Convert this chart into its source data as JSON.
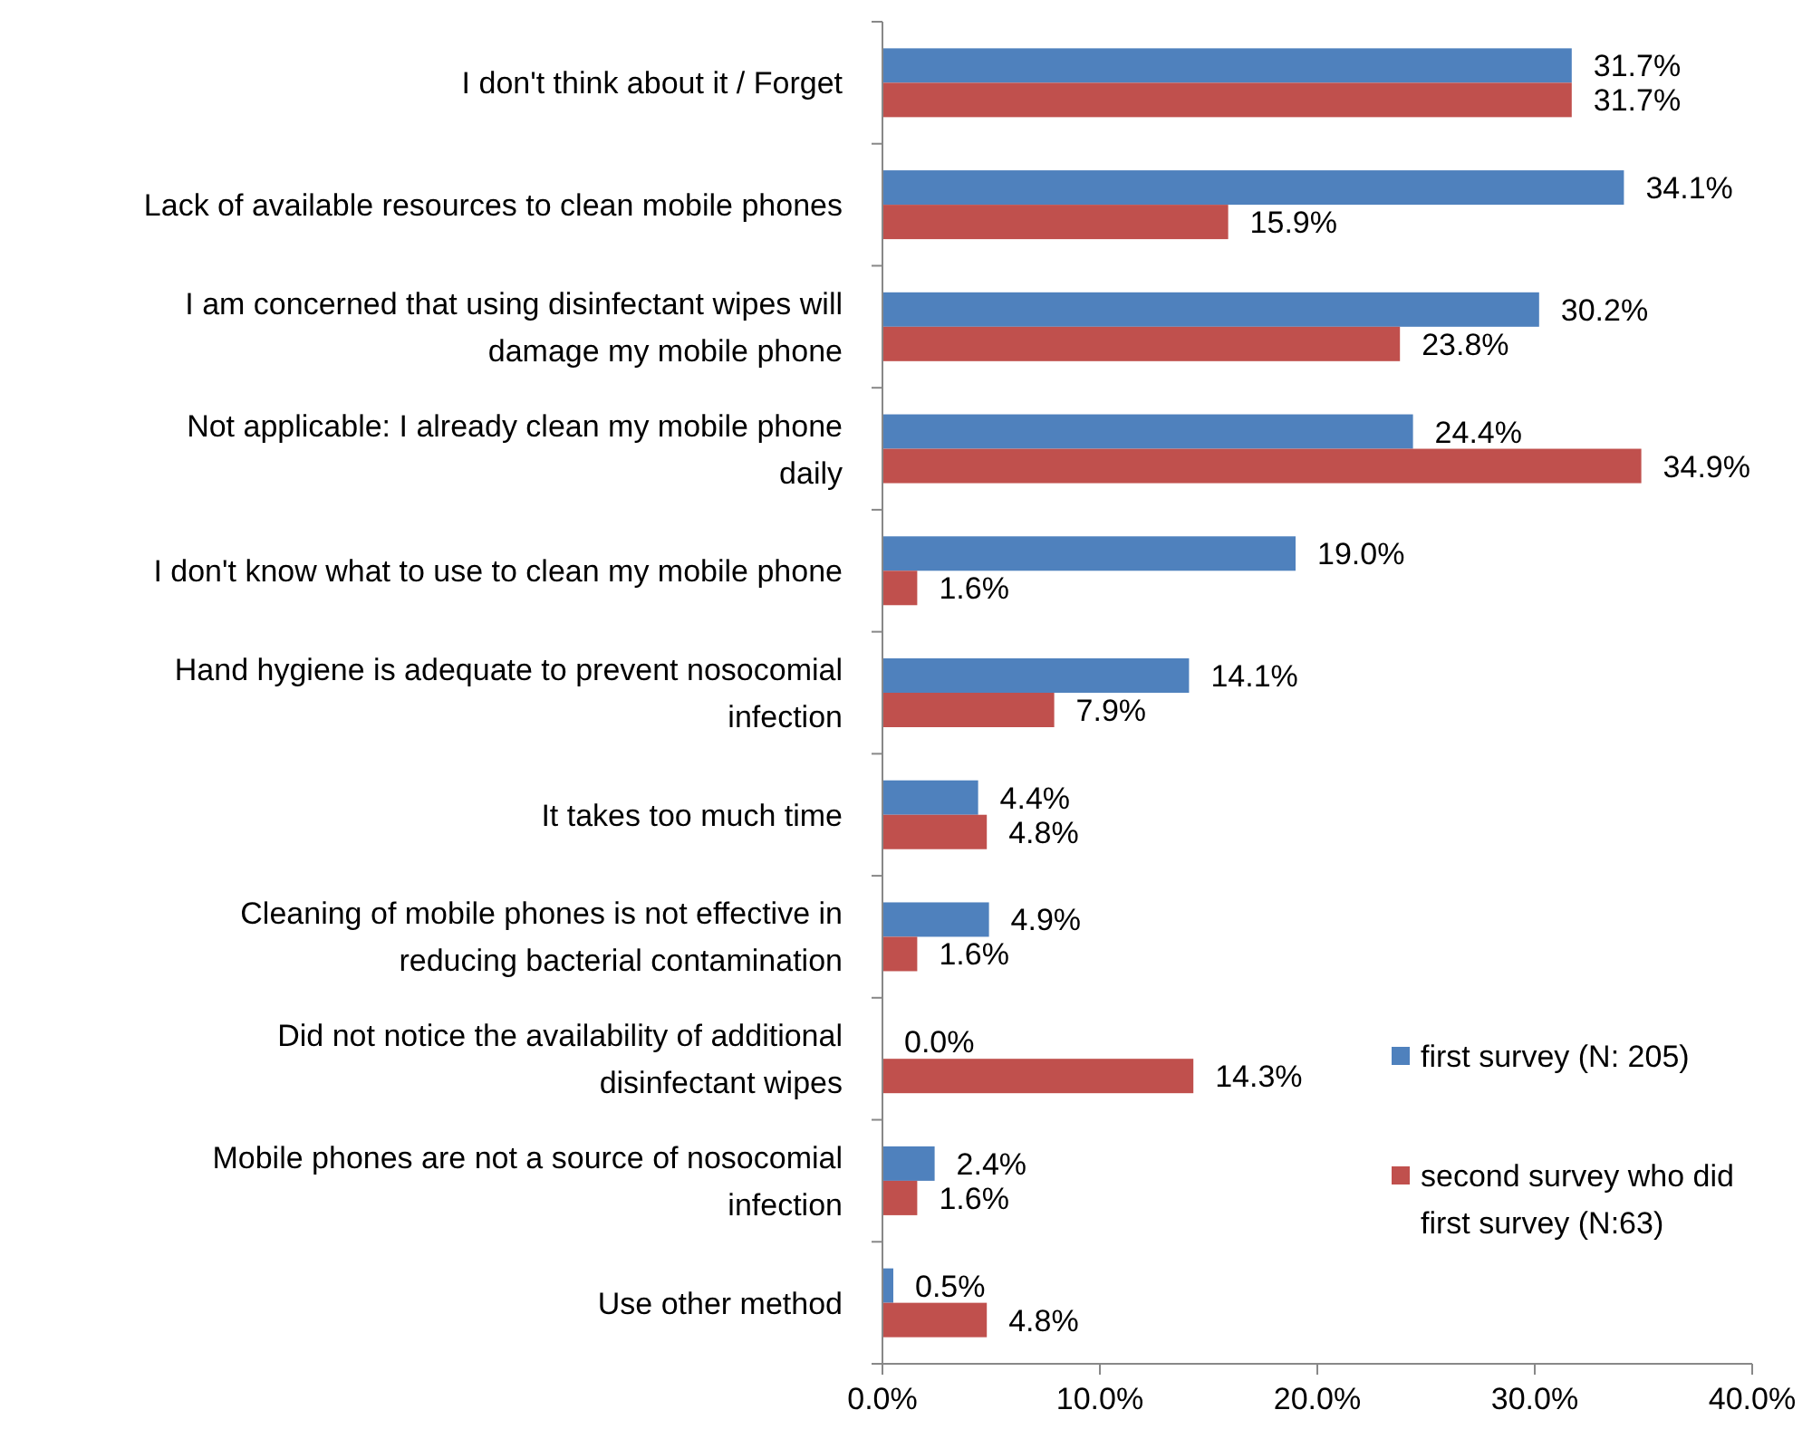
{
  "chart_data": {
    "type": "bar",
    "orientation": "horizontal",
    "categories": [
      "I don't think about it / Forget",
      "Lack of available resources to clean mobile phones",
      "I am concerned that using disinfectant wipes will damage my mobile phone",
      "Not applicable: I already clean my mobile phone daily",
      "I don't know what to use to clean my mobile phone",
      "Hand hygiene is adequate to prevent nosocomial infection",
      "It takes too much time",
      "Cleaning of mobile phones is not effective in reducing bacterial contamination",
      "Did not notice the availability of additional disinfectant wipes",
      "Mobile phones are not a source of nosocomial infection",
      "Use other method"
    ],
    "series": [
      {
        "name": "first survey (N: 205)",
        "color": "#4f81bd",
        "values": [
          31.7,
          34.1,
          30.2,
          24.4,
          19.0,
          14.1,
          4.4,
          4.9,
          0.0,
          2.4,
          0.5
        ],
        "value_labels": [
          "31.7%",
          "34.1%",
          "30.2%",
          "24.4%",
          "19.0%",
          "14.1%",
          "4.4%",
          "4.9%",
          "0.0%",
          "2.4%",
          "0.5%"
        ]
      },
      {
        "name": "second survey who did first survey (N:63)",
        "color": "#c0504d",
        "values": [
          31.7,
          15.9,
          23.8,
          34.9,
          1.6,
          7.9,
          4.8,
          1.6,
          14.3,
          1.6,
          4.8
        ],
        "value_labels": [
          "31.7%",
          "15.9%",
          "23.8%",
          "34.9%",
          "1.6%",
          "7.9%",
          "4.8%",
          "1.6%",
          "14.3%",
          "1.6%",
          "4.8%"
        ]
      }
    ],
    "xlim": [
      0,
      40
    ],
    "xticks": [
      {
        "value": 0,
        "label": "0.0%"
      },
      {
        "value": 10,
        "label": "10.0%"
      },
      {
        "value": 20,
        "label": "20.0%"
      },
      {
        "value": 30,
        "label": "30.0%"
      },
      {
        "value": 40,
        "label": "40.0%"
      }
    ],
    "legend": "bottom right",
    "grid": false
  }
}
